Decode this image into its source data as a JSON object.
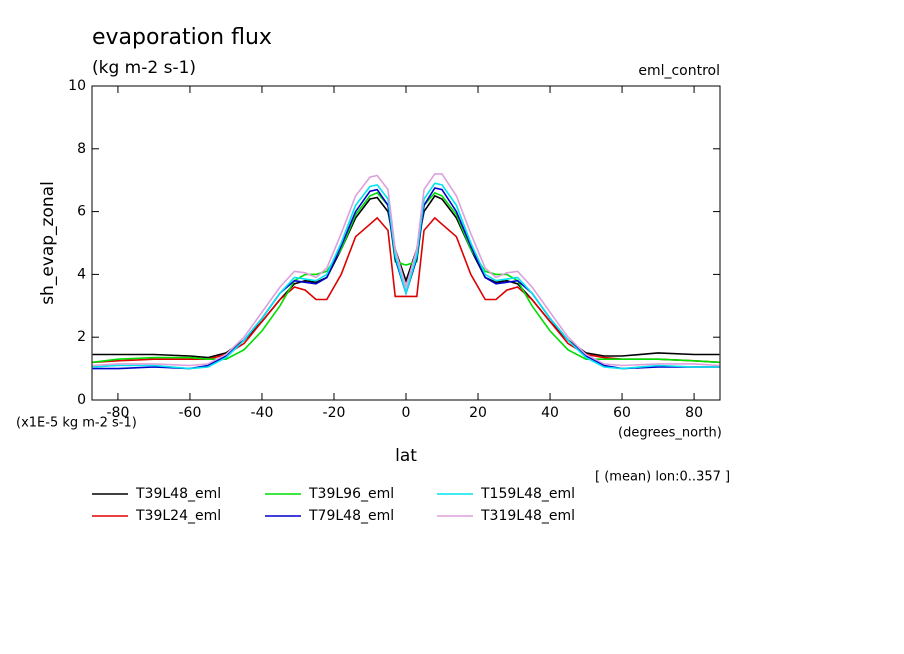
{
  "chart_data": {
    "type": "line",
    "title": "evaporation flux",
    "subtitle": "(kg m-2 s-1)",
    "annotation": "eml_control",
    "y_label": "sh_evap_zonal",
    "x_label": "lat",
    "y_units": "(x1E-5 kg m-2 s-1)",
    "x_units": "(degrees_north)",
    "note": "[ (mean) lon:0..357 ]",
    "xlim": [
      -87.2,
      87.2
    ],
    "ylim": [
      0,
      10
    ],
    "xticks": [
      -80,
      -60,
      -40,
      -20,
      0,
      20,
      40,
      60,
      80
    ],
    "yticks": [
      0,
      2,
      4,
      6,
      8,
      10
    ],
    "x": [
      -87,
      -80,
      -70,
      -60,
      -55,
      -50,
      -45,
      -40,
      -35,
      -31,
      -28,
      -25,
      -22,
      -18,
      -14,
      -10,
      -8,
      -5,
      -3,
      0,
      3,
      5,
      8,
      10,
      14,
      18,
      22,
      25,
      28,
      31,
      35,
      40,
      45,
      50,
      55,
      60,
      70,
      80,
      87
    ],
    "series": [
      {
        "name": "T39L48_eml",
        "color": "#000000",
        "values": [
          1.45,
          1.45,
          1.45,
          1.4,
          1.35,
          1.5,
          1.9,
          2.5,
          3.2,
          3.7,
          3.8,
          3.75,
          3.9,
          4.8,
          5.8,
          6.4,
          6.45,
          6.0,
          4.8,
          3.8,
          4.8,
          6.0,
          6.5,
          6.4,
          5.8,
          4.8,
          3.9,
          3.75,
          3.8,
          3.7,
          3.2,
          2.5,
          1.9,
          1.5,
          1.4,
          1.4,
          1.5,
          1.45,
          1.45
        ]
      },
      {
        "name": "T39L24_eml",
        "color": "#dd0000",
        "values": [
          1.2,
          1.25,
          1.3,
          1.3,
          1.3,
          1.45,
          1.8,
          2.5,
          3.2,
          3.6,
          3.5,
          3.2,
          3.2,
          4.0,
          5.2,
          5.6,
          5.8,
          5.4,
          3.3,
          3.3,
          3.3,
          5.4,
          5.8,
          5.6,
          5.2,
          4.0,
          3.2,
          3.2,
          3.5,
          3.6,
          3.2,
          2.5,
          1.8,
          1.45,
          1.35,
          1.3,
          1.3,
          1.25,
          1.2
        ]
      },
      {
        "name": "T39L96_eml",
        "color": "#00dd00",
        "values": [
          1.2,
          1.3,
          1.35,
          1.35,
          1.3,
          1.3,
          1.6,
          2.2,
          3.0,
          3.8,
          4.0,
          4.0,
          4.1,
          4.8,
          5.9,
          6.5,
          6.6,
          6.2,
          4.4,
          4.3,
          4.4,
          6.2,
          6.6,
          6.5,
          5.9,
          4.8,
          4.1,
          4.0,
          4.0,
          3.8,
          3.0,
          2.2,
          1.6,
          1.3,
          1.3,
          1.3,
          1.3,
          1.25,
          1.2
        ]
      },
      {
        "name": "T79L48_eml",
        "color": "#0000cc",
        "values": [
          1.0,
          1.0,
          1.05,
          1.0,
          1.1,
          1.4,
          1.9,
          2.6,
          3.4,
          3.8,
          3.75,
          3.7,
          3.9,
          4.9,
          6.0,
          6.65,
          6.7,
          6.2,
          4.5,
          3.4,
          4.5,
          6.2,
          6.75,
          6.7,
          6.0,
          4.9,
          3.9,
          3.7,
          3.75,
          3.8,
          3.4,
          2.6,
          1.9,
          1.4,
          1.1,
          1.0,
          1.05,
          1.05,
          1.05
        ]
      },
      {
        "name": "T159L48_eml",
        "color": "#00e5ee",
        "values": [
          1.05,
          1.1,
          1.1,
          1.0,
          1.05,
          1.35,
          1.9,
          2.6,
          3.4,
          3.9,
          3.85,
          3.8,
          4.0,
          5.0,
          6.2,
          6.8,
          6.85,
          6.4,
          4.6,
          3.4,
          4.6,
          6.4,
          6.9,
          6.85,
          6.2,
          5.0,
          4.0,
          3.8,
          3.85,
          3.9,
          3.4,
          2.6,
          1.9,
          1.35,
          1.05,
          1.0,
          1.1,
          1.05,
          1.05
        ]
      },
      {
        "name": "T319L48_eml",
        "color": "#dda0dd",
        "values": [
          1.1,
          1.15,
          1.15,
          1.1,
          1.15,
          1.45,
          2.0,
          2.8,
          3.6,
          4.1,
          4.05,
          3.9,
          4.2,
          5.3,
          6.5,
          7.1,
          7.15,
          6.7,
          4.8,
          3.6,
          4.8,
          6.7,
          7.2,
          7.2,
          6.5,
          5.3,
          4.2,
          3.9,
          4.05,
          4.1,
          3.6,
          2.8,
          2.0,
          1.45,
          1.15,
          1.1,
          1.15,
          1.15,
          1.1
        ]
      }
    ]
  }
}
